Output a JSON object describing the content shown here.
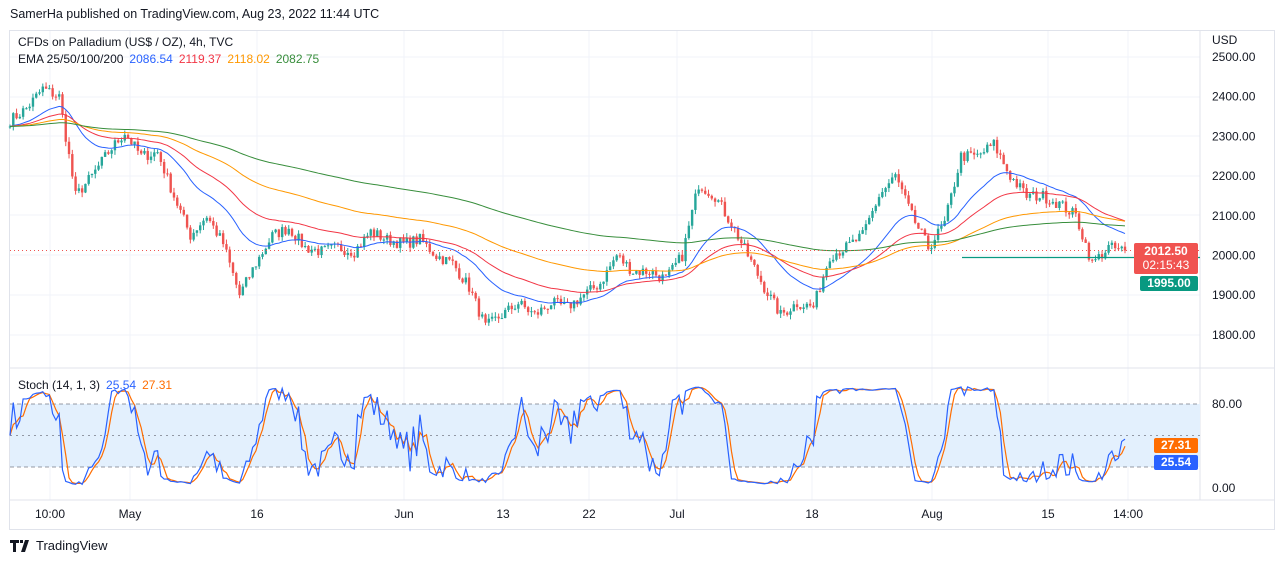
{
  "header": {
    "published": "SamerHa published on TradingView.com, Aug 23, 2022 11:44 UTC"
  },
  "legend": {
    "symbol": "CFDs on Palladium (US$ / OZ), 4h, TVC",
    "ema_label": "EMA 25/50/100/200",
    "ema_values": [
      "2086.54",
      "2119.37",
      "2118.02",
      "2082.75"
    ],
    "stoch_label": "Stoch (14, 1, 3)",
    "stoch_k": "25.54",
    "stoch_d": "27.31"
  },
  "colors": {
    "up": "#26a69a",
    "down": "#ef5350",
    "ema25": "#2962ff",
    "ema50": "#f23645",
    "ema100": "#ff9800",
    "ema200": "#388e3c",
    "stoch_k": "#2962ff",
    "stoch_d": "#ff6d00",
    "band": "#e3f0fd"
  },
  "price_axis": {
    "currency": "USD",
    "ticks": [
      "2500.00",
      "2400.00",
      "2300.00",
      "2200.00",
      "2100.00",
      "2000.00",
      "1900.00",
      "1800.00"
    ]
  },
  "stoch_axis": {
    "ticks": [
      "80.00",
      "0.00"
    ]
  },
  "tags": {
    "last_price": "2012.50",
    "countdown": "02:15:43",
    "level": "1995.00",
    "d": "27.31",
    "k": "25.54"
  },
  "time_axis": [
    "10:00",
    "May",
    "16",
    "Jun",
    "13",
    "22",
    "Jul",
    "18",
    "Aug",
    "15",
    "14:00"
  ],
  "chart_data": {
    "type": "candlestick",
    "ylim": [
      1770,
      2530
    ],
    "horizontal_level": 1995,
    "closes": [
      2340,
      2370,
      2420,
      2400,
      2150,
      2200,
      2260,
      2310,
      2250,
      2260,
      2150,
      2050,
      2100,
      2030,
      1900,
      1980,
      2050,
      2070,
      2020,
      2010,
      2020,
      2010,
      2060,
      2040,
      2030,
      2040,
      2000,
      1980,
      1920,
      1820,
      1850,
      1880,
      1850,
      1880,
      1870,
      1900,
      1930,
      2000,
      1960,
      1960,
      1940,
      2000,
      2180,
      2150,
      2080,
      2000,
      1920,
      1850,
      1880,
      1870,
      2000,
      2020,
      2050,
      2150,
      2200,
      2100,
      2020,
      2080,
      2250,
      2250,
      2280,
      2200,
      2150,
      2150,
      2130,
      2100,
      1980,
      2020,
      2012.5
    ]
  },
  "footer": {
    "brand": "TradingView"
  }
}
